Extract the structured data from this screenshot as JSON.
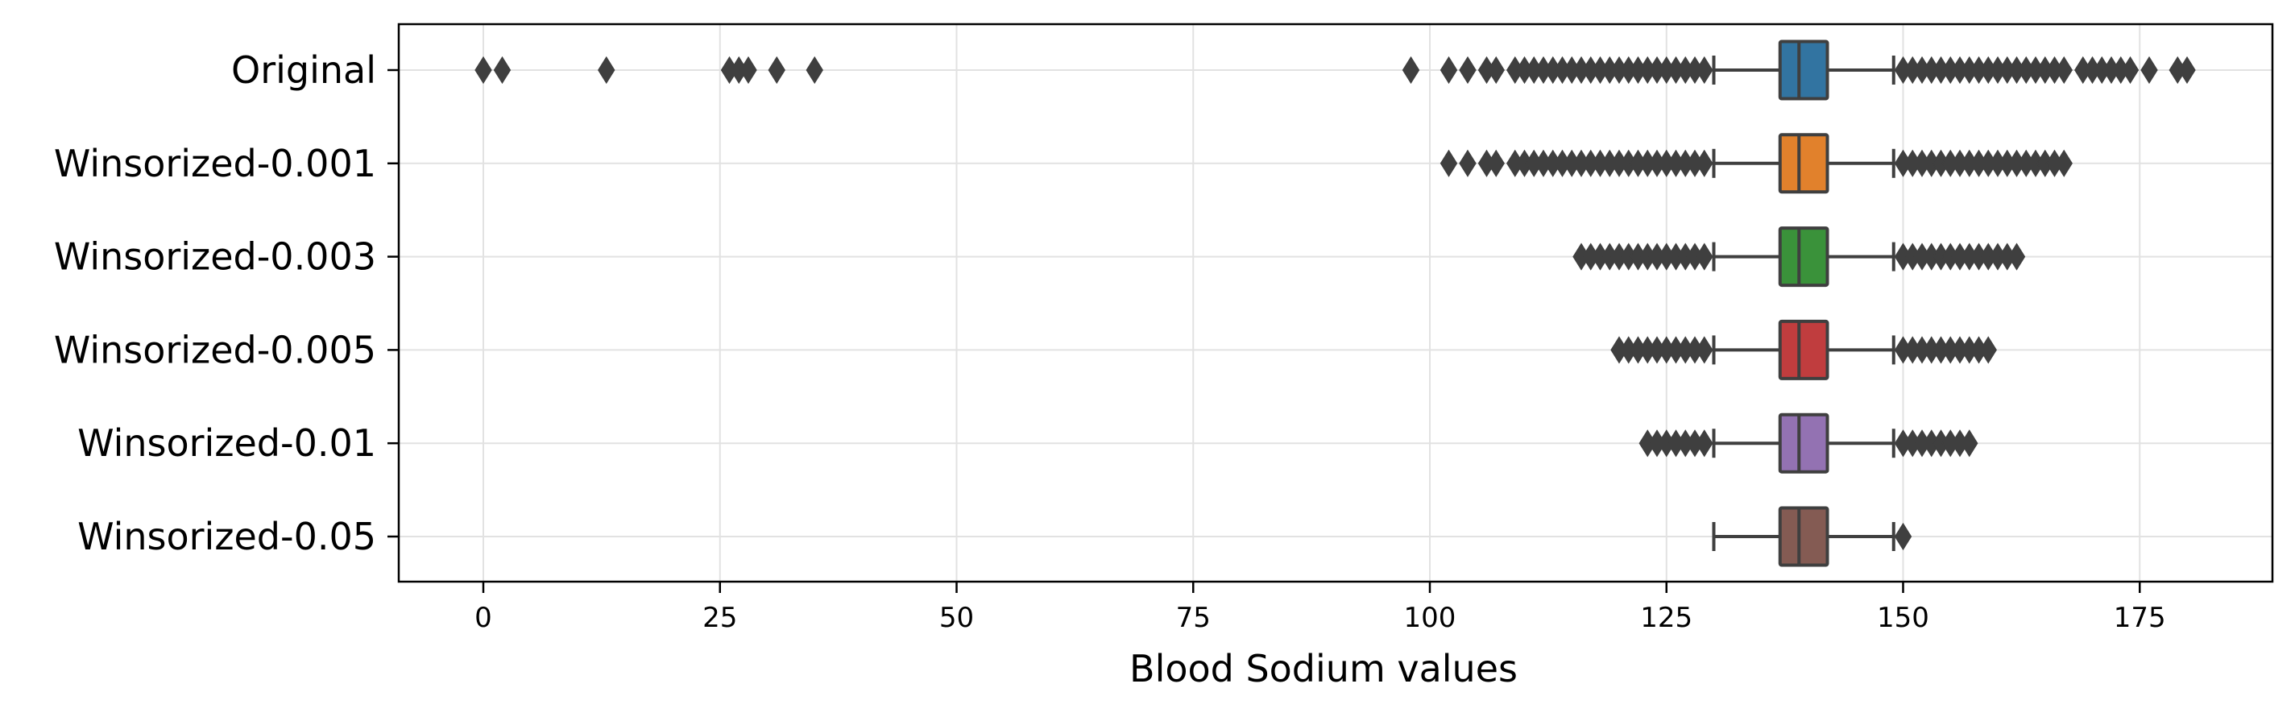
{
  "chart_data": {
    "type": "boxplot",
    "orientation": "horizontal",
    "xlabel": "Blood Sodium values",
    "ylabel": "",
    "xlim": [
      -9,
      189
    ],
    "xticks": [
      0,
      25,
      50,
      75,
      100,
      125,
      150,
      175
    ],
    "grid": true,
    "series": [
      {
        "name": "Original",
        "color": "#3274a1",
        "whisker_low": 130,
        "q1": 137,
        "median": 139,
        "q3": 142,
        "whisker_high": 149,
        "outliers_low": [
          0,
          2,
          13,
          26,
          27,
          28,
          31,
          35,
          98,
          102,
          104,
          106,
          107,
          109,
          110,
          111,
          112,
          113,
          114,
          115,
          116,
          117,
          118,
          119,
          120,
          121,
          122,
          123,
          124,
          125,
          126,
          127,
          128,
          129
        ],
        "outliers_high": [
          150,
          151,
          152,
          153,
          154,
          155,
          156,
          157,
          158,
          159,
          160,
          161,
          162,
          163,
          164,
          165,
          166,
          167,
          169,
          170,
          171,
          172,
          173,
          174,
          176,
          179,
          180
        ]
      },
      {
        "name": "Winsorized-0.001",
        "color": "#e1812c",
        "whisker_low": 130,
        "q1": 137,
        "median": 139,
        "q3": 142,
        "whisker_high": 149,
        "outliers_low": [
          102,
          104,
          106,
          107,
          109,
          110,
          111,
          112,
          113,
          114,
          115,
          116,
          117,
          118,
          119,
          120,
          121,
          122,
          123,
          124,
          125,
          126,
          127,
          128,
          129
        ],
        "outliers_high": [
          150,
          151,
          152,
          153,
          154,
          155,
          156,
          157,
          158,
          159,
          160,
          161,
          162,
          163,
          164,
          165,
          166,
          167
        ]
      },
      {
        "name": "Winsorized-0.003",
        "color": "#3a923a",
        "whisker_low": 130,
        "q1": 137,
        "median": 139,
        "q3": 142,
        "whisker_high": 149,
        "outliers_low": [
          116,
          117,
          118,
          119,
          120,
          121,
          122,
          123,
          124,
          125,
          126,
          127,
          128,
          129
        ],
        "outliers_high": [
          150,
          151,
          152,
          153,
          154,
          155,
          156,
          157,
          158,
          159,
          160,
          161,
          162
        ]
      },
      {
        "name": "Winsorized-0.005",
        "color": "#c03d3e",
        "whisker_low": 130,
        "q1": 137,
        "median": 139,
        "q3": 142,
        "whisker_high": 149,
        "outliers_low": [
          120,
          121,
          122,
          123,
          124,
          125,
          126,
          127,
          128,
          129
        ],
        "outliers_high": [
          150,
          151,
          152,
          153,
          154,
          155,
          156,
          157,
          158,
          159
        ]
      },
      {
        "name": "Winsorized-0.01",
        "color": "#9372b2",
        "whisker_low": 130,
        "q1": 137,
        "median": 139,
        "q3": 142,
        "whisker_high": 149,
        "outliers_low": [
          123,
          124,
          125,
          126,
          127,
          128,
          129
        ],
        "outliers_high": [
          150,
          151,
          152,
          153,
          154,
          155,
          156,
          157
        ]
      },
      {
        "name": "Winsorized-0.05",
        "color": "#845b53",
        "whisker_low": 130,
        "q1": 137,
        "median": 139,
        "q3": 142,
        "whisker_high": 149,
        "outliers_low": [],
        "outliers_high": [
          150
        ]
      }
    ]
  }
}
